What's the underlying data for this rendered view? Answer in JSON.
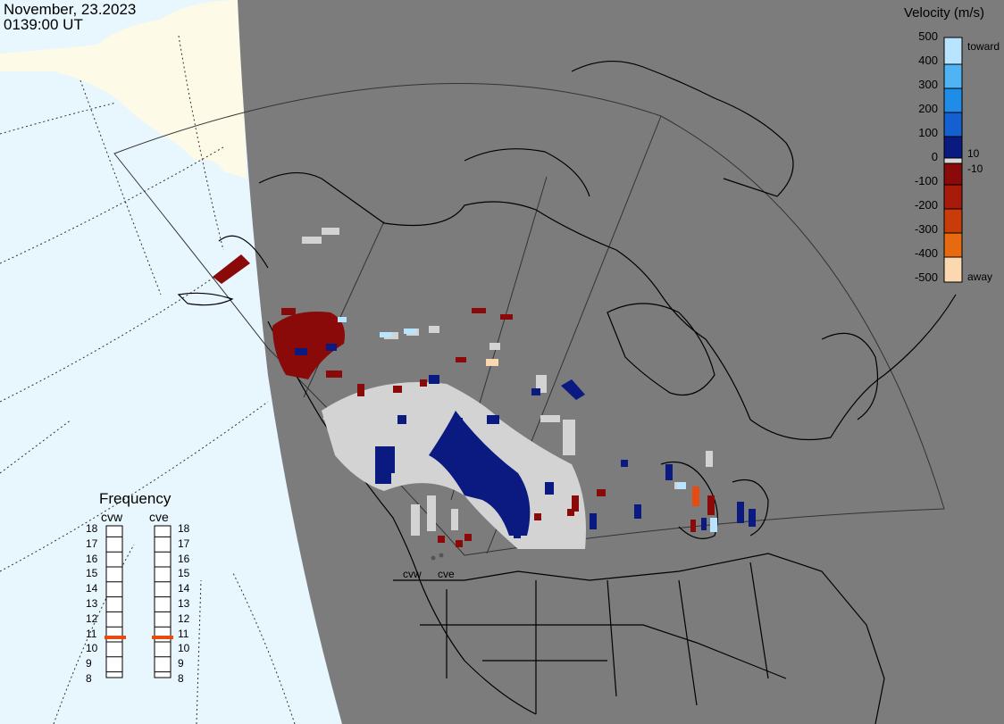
{
  "timestamp": {
    "date": "November, 23.2023",
    "time": "0139:00 UT"
  },
  "legend": {
    "title": "Velocity (m/s)",
    "ticks": [
      "500",
      "400",
      "300",
      "200",
      "100",
      "0",
      "-100",
      "-200",
      "-300",
      "-400",
      "-500"
    ],
    "labels": {
      "toward": "toward",
      "away": "away",
      "pos_thresh": "10",
      "neg_thresh": "-10"
    },
    "colors": [
      "#b8e4ff",
      "#4fb3f4",
      "#1f8ce8",
      "#1560d0",
      "#0a3aa8",
      "#0a1a80",
      "#d8d8d8",
      "#8a0a0a",
      "#a81a0a",
      "#c83c0a",
      "#e86a10",
      "#f8a040",
      "#fcd8b0"
    ],
    "freq_marker_color": "#e84a10"
  },
  "frequency": {
    "title": "Frequency",
    "radars": [
      "cvw",
      "cve"
    ],
    "ticks": [
      "18",
      "17",
      "16",
      "15",
      "14",
      "13",
      "12",
      "11",
      "10",
      "9",
      "8"
    ],
    "current_mhz": [
      11,
      11
    ]
  },
  "sites": [
    "cvw",
    "cve"
  ],
  "colors": {
    "ocean_light": "#e8f6fe",
    "night": "#7c7c7c",
    "land_day": "#fdfbe8",
    "scatter_gray": "#d3d3d3"
  }
}
